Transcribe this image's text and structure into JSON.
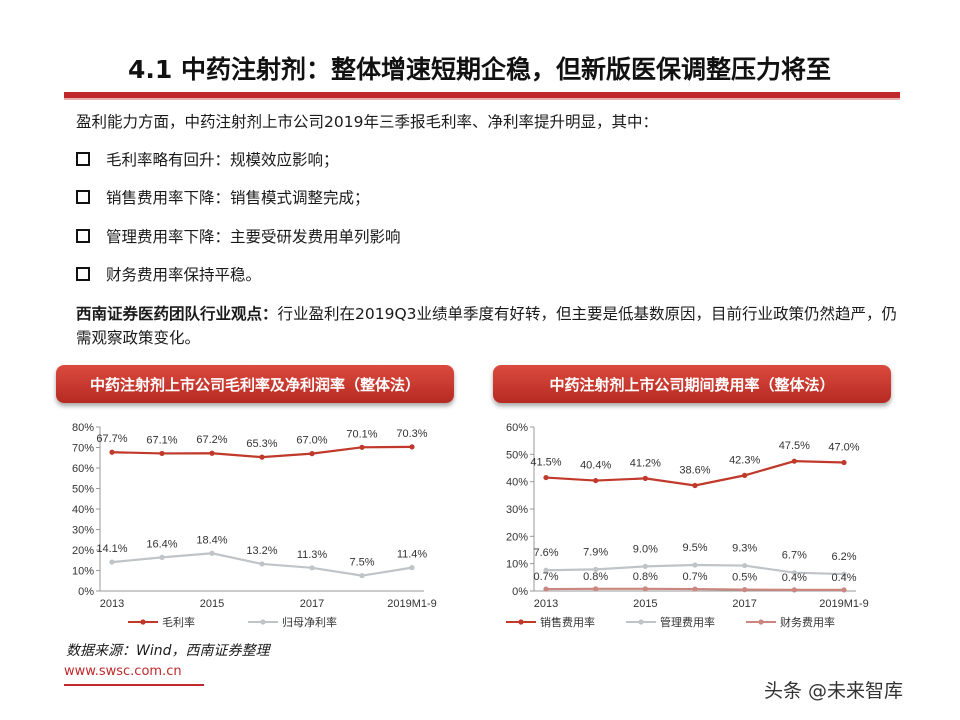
{
  "page": {
    "title": "4.1 中药注射剂：整体增速短期企稳，但新版医保调整压力将至",
    "intro": "盈利能力方面，中药注射剂上市公司2019年三季报毛利率、净利率提升明显，其中：",
    "bullets": [
      "毛利率略有回升：规模效应影响；",
      "销售费用率下降：销售模式调整完成；",
      "管理费用率下降：主要受研发费用单列影响",
      "财务费用率保持平稳。"
    ],
    "view_label": "西南证券医药团队行业观点：",
    "view_text": "行业盈利在2019Q3业绩单季度有好转，但主要是低基数原因，目前行业政策仍然趋严，仍需观察政策变化。",
    "source": "数据来源：Wind，西南证券整理",
    "footer_url": "www.swsc.com.cn",
    "watermark": "头条 @未来智库"
  },
  "colors": {
    "accent": "#c0282b",
    "series_red": "#c0392b",
    "series_gray": "#bfc4c8",
    "series_pink": "#c9877f"
  },
  "chart_data": [
    {
      "type": "line",
      "title": "中药注射剂上市公司毛利率及净利润率（整体法）",
      "x": [
        "2013",
        "2014",
        "2015",
        "2016",
        "2017",
        "2018",
        "2019M1-9"
      ],
      "x_tick_labels": [
        "2013",
        "2015",
        "2017",
        "2019M1-9"
      ],
      "y_ticks": [
        "0%",
        "10%",
        "20%",
        "30%",
        "40%",
        "50%",
        "60%",
        "70%",
        "80%"
      ],
      "ylim": [
        0,
        80
      ],
      "series": [
        {
          "name": "毛利率",
          "values": [
            67.7,
            67.1,
            67.2,
            65.3,
            67.0,
            70.1,
            70.3
          ],
          "labels": [
            "67.7%",
            "67.1%",
            "67.2%",
            "65.3%",
            "67.0%",
            "70.1%",
            "70.3%"
          ],
          "color": "#c0392b"
        },
        {
          "name": "归母净利率",
          "values": [
            14.1,
            16.4,
            18.4,
            13.2,
            11.3,
            7.5,
            11.4
          ],
          "labels": [
            "14.1%",
            "16.4%",
            "18.4%",
            "13.2%",
            "11.3%",
            "7.5%",
            "11.4%"
          ],
          "color": "#bfc4c8"
        }
      ],
      "grid": false,
      "legend": "bottom"
    },
    {
      "type": "line",
      "title": "中药注射剂上市公司期间费用率（整体法）",
      "x": [
        "2013",
        "2014",
        "2015",
        "2016",
        "2017",
        "2018",
        "2019M1-9"
      ],
      "x_tick_labels": [
        "2013",
        "2015",
        "2017",
        "2019M1-9"
      ],
      "y_ticks": [
        "0%",
        "10%",
        "20%",
        "30%",
        "40%",
        "50%",
        "60%"
      ],
      "ylim": [
        0,
        60
      ],
      "series": [
        {
          "name": "销售费用率",
          "values": [
            41.5,
            40.4,
            41.2,
            38.6,
            42.3,
            47.5,
            47.0
          ],
          "labels": [
            "41.5%",
            "40.4%",
            "41.2%",
            "38.6%",
            "42.3%",
            "47.5%",
            "47.0%"
          ],
          "color": "#c0392b"
        },
        {
          "name": "管理费用率",
          "values": [
            7.6,
            7.9,
            9.0,
            9.5,
            9.3,
            6.7,
            6.2
          ],
          "labels": [
            "7.6%",
            "7.9%",
            "9.0%",
            "9.5%",
            "9.3%",
            "6.7%",
            "6.2%"
          ],
          "color": "#bfc4c8"
        },
        {
          "name": "财务费用率",
          "values": [
            0.7,
            0.8,
            0.8,
            0.7,
            0.5,
            0.4,
            0.4
          ],
          "labels": [
            "0.7%",
            "0.8%",
            "0.8%",
            "0.7%",
            "0.5%",
            "0.4%",
            "0.4%"
          ],
          "color": "#c9877f"
        }
      ],
      "grid": false,
      "legend": "bottom"
    }
  ]
}
